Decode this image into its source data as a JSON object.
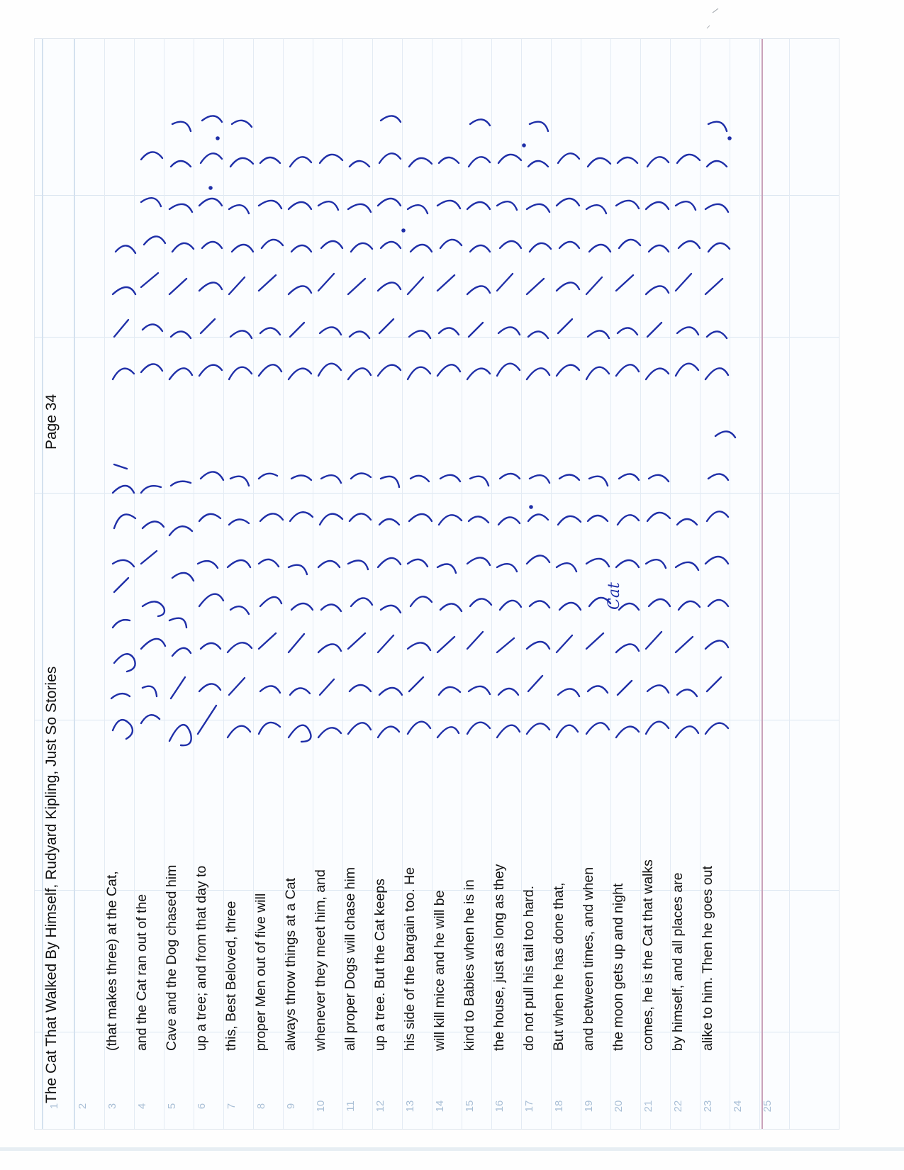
{
  "document": {
    "header_title": "The Cat That Walked By Himself, Rudyard Kipling, Just So Stories",
    "page_label": "Page 34",
    "line_numbers": [
      "1",
      "2",
      "3",
      "4",
      "5",
      "6",
      "7",
      "8",
      "9",
      "10",
      "11",
      "12",
      "13",
      "14",
      "15",
      "16",
      "17",
      "18",
      "19",
      "20",
      "21",
      "22",
      "23",
      "24",
      "25"
    ],
    "typed_lines": [
      "(that makes three) at the Cat,",
      "and the Cat ran out of the",
      "Cave and the Dog chased him",
      "up a tree; and from that day to",
      "this, Best Beloved, three",
      "proper Men out of five will",
      "always throw things at a Cat",
      "whenever they meet him, and",
      "all proper Dogs will chase him",
      "up a tree. But the Cat keeps",
      "his side of the bargain too. He",
      "will kill mice and he will be",
      "kind to Babies when he is in",
      "the house, just as long as they",
      "do not pull his tail too hard.",
      "But when he has done that,",
      "and between times, and when",
      "the moon gets up and night",
      "comes, he is the Cat that walks",
      "by himself, and all places are",
      "alike to him. Then he goes out"
    ],
    "shorthand_inscriptions": [
      "Cat"
    ]
  },
  "colors": {
    "paper": "#fbfdff",
    "rule_line": "#dbe6f1",
    "margin_line": "#d4e1ef",
    "line_number": "#a9bfd6",
    "typed_text": "#111111",
    "ink": "#1f2fa8",
    "center_fold": "#c9a2ba"
  }
}
